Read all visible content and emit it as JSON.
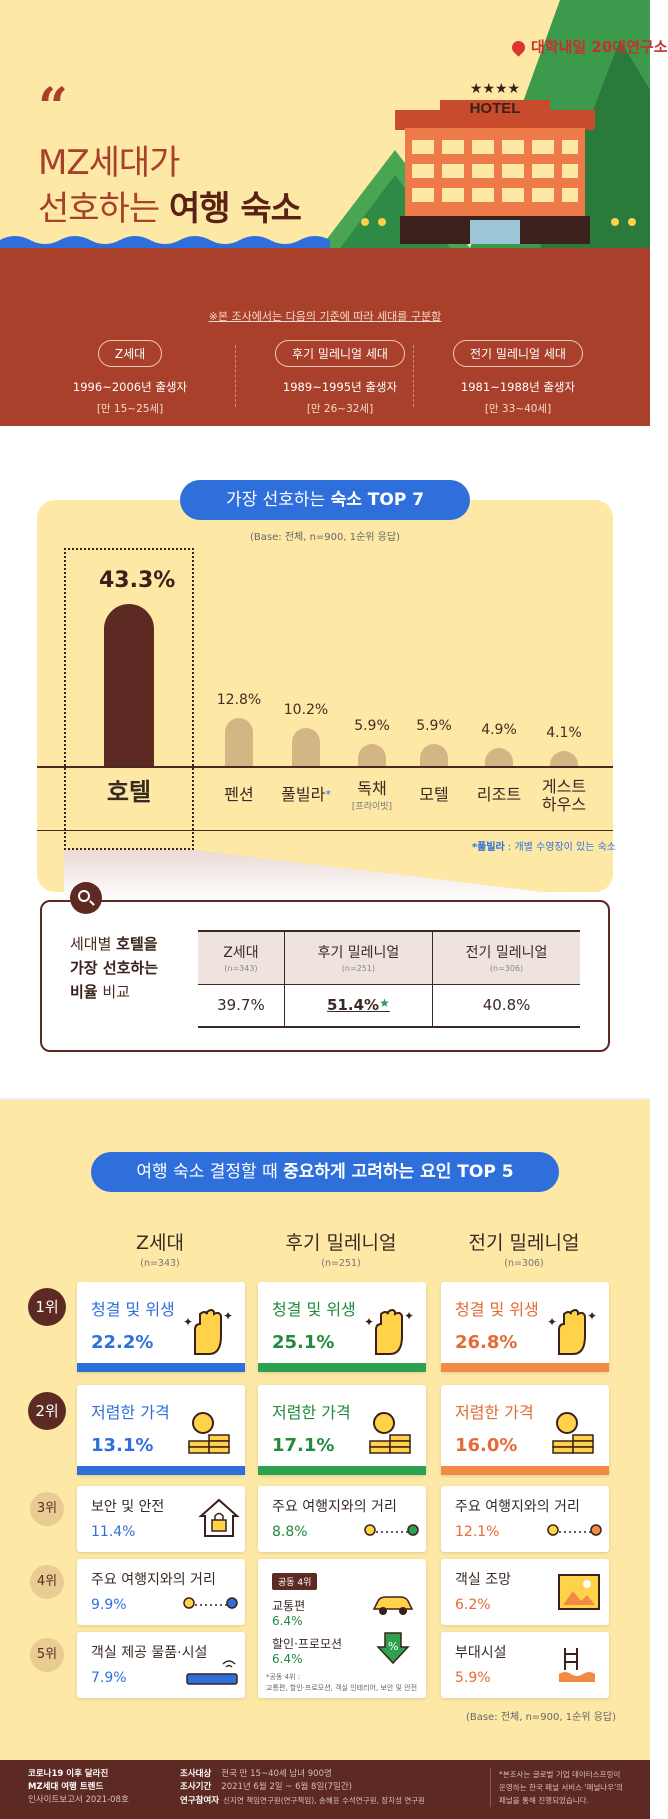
{
  "hero": {
    "quote_mark": "“",
    "title_line1": "MZ세대가",
    "title_line2_a": "선호하는 ",
    "title_line2_b": "여행 숙소",
    "hotel_sign": "HOTEL",
    "logo": "대학내일 20대연구소"
  },
  "generations": {
    "note": "※본 조사에서는 다음의 기준에 따라 세대를 구분함",
    "items": [
      {
        "name": "Z세대",
        "years": "1996~2006년 출생자",
        "age": "[만 15~25세]"
      },
      {
        "name": "후기 밀레니얼 세대",
        "years": "1989~1995년 출생자",
        "age": "[만 26~32세]"
      },
      {
        "name": "전기 밀레니얼 세대",
        "years": "1981~1988년 출생자",
        "age": "[만 33~40세]"
      }
    ]
  },
  "top7": {
    "title_a": "가장 선호하는 ",
    "title_b": "숙소 TOP 7",
    "base": "(Base: 전체, n=900, 1순위 응답)",
    "footnote_a": "*풀빌라",
    "footnote_b": " : 개별 수영장이 있는 숙소"
  },
  "chart_data": {
    "type": "bar",
    "categories": [
      "호텔",
      "펜션",
      "풀빌라*",
      "독채 [프라이빗]",
      "모텔",
      "리조트",
      "게스트하우스"
    ],
    "values": [
      43.3,
      12.8,
      10.2,
      5.9,
      5.9,
      4.9,
      4.1
    ],
    "value_labels": [
      "43.3%",
      "12.8%",
      "10.2%",
      "5.9%",
      "5.9%",
      "4.9%",
      "4.1%"
    ],
    "unit": "%"
  },
  "comparison": {
    "q1_a": "세대별 ",
    "q1_b": "호텔을",
    "q2": "가장 선호하는",
    "q3_a": "비율",
    "q3_b": " 비교",
    "headers": [
      {
        "name": "Z세대",
        "n": "(n=343)"
      },
      {
        "name": "후기 밀레니얼",
        "n": "(n=251)"
      },
      {
        "name": "전기 밀레니얼",
        "n": "(n=306)"
      }
    ],
    "values": [
      "39.7%",
      "51.4%",
      "40.8%"
    ],
    "star": "★"
  },
  "top5": {
    "title_a": "여행 숙소 결정할 때 ",
    "title_b": "중요하게 고려하는 요인 TOP 5",
    "columns": [
      {
        "name": "Z세대",
        "n": "(n=343)"
      },
      {
        "name": "후기 밀레니얼",
        "n": "(n=251)"
      },
      {
        "name": "전기 밀레니얼",
        "n": "(n=306)"
      }
    ],
    "ranks": [
      "1위",
      "2위",
      "3위",
      "4위",
      "5위"
    ],
    "z": [
      {
        "label": "청결 및 위생",
        "value": "22.2%"
      },
      {
        "label": "저렴한 가격",
        "value": "13.1%"
      },
      {
        "label": "보안 및 안전",
        "value": "11.4%"
      },
      {
        "label": "주요 여행지와의 거리",
        "value": "9.9%"
      },
      {
        "label": "객실 제공 물품·시설",
        "value": "7.9%"
      }
    ],
    "late": [
      {
        "label": "청결 및 위생",
        "value": "25.1%"
      },
      {
        "label": "저렴한 가격",
        "value": "17.1%"
      },
      {
        "label": "주요 여행지와의 거리",
        "value": "8.8%"
      }
    ],
    "late_tie": {
      "tag": "공동 4위",
      "a_label": "교통편",
      "a_value": "6.4%",
      "b_label": "할인·프로모션",
      "b_value": "6.4%",
      "note1": "*공동 4위 :",
      "note2": "교통편, 할인·프로모션, 객실 인테리어, 보안 및 안전"
    },
    "early": [
      {
        "label": "청결 및 위생",
        "value": "26.8%"
      },
      {
        "label": "저렴한 가격",
        "value": "16.0%"
      },
      {
        "label": "주요 여행지와의 거리",
        "value": "12.1%"
      },
      {
        "label": "객실 조망",
        "value": "6.2%"
      },
      {
        "label": "부대시설",
        "value": "5.9%"
      }
    ],
    "base": "(Base: 전체, n=900, 1순위 응답)"
  },
  "footer": {
    "l1": "코로나19 이후 달라진",
    "l2": "MZ세대 여행 트렌드",
    "l3": "인사이트보고서 2021-08호",
    "k1": "조사대상",
    "v1": "전국 만 15~40세 남녀 900명",
    "k2": "조사기간",
    "v2": "2021년 6월 2일 ~ 6월 8일(7일간)",
    "k3": "연구참여자",
    "v3": "신지연 책임연구원(연구책임), 송혜윤 수석연구원, 장지성 연구원",
    "r1": "*본조사는 글로벌 기업 데이터스프링이",
    "r2": "운영하는 한국 패널 서비스 '패널나우'의",
    "r3": "패널을 통해 진행되었습니다."
  }
}
